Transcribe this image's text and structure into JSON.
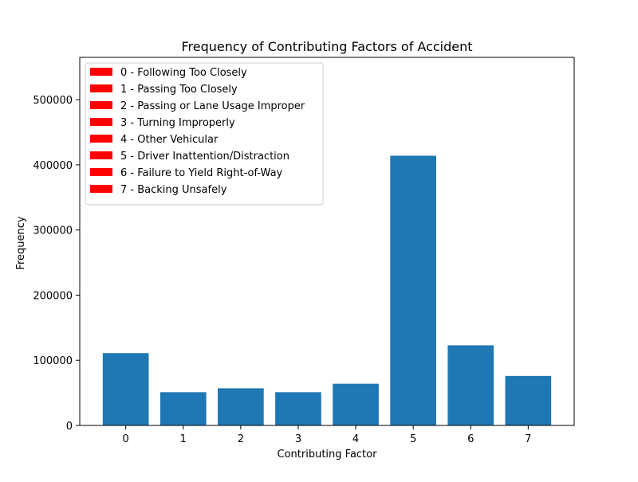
{
  "chart_data": {
    "type": "bar",
    "title": "Frequency of Contributing Factors of Accident",
    "xlabel": "Contributing Factor",
    "ylabel": "Frequency",
    "categories": [
      "0",
      "1",
      "2",
      "3",
      "4",
      "5",
      "6",
      "7"
    ],
    "values": [
      111000,
      51000,
      57000,
      51000,
      64000,
      414000,
      123000,
      76000
    ],
    "ylim": [
      0,
      565000
    ],
    "yticks": [
      0,
      100000,
      200000,
      300000,
      400000,
      500000
    ],
    "ytick_labels": [
      "0",
      "100000",
      "200000",
      "300000",
      "400000",
      "500000"
    ],
    "grid": false,
    "bar_color": "#1f77b4",
    "legend": {
      "placement": "top-left",
      "swatch_color": "#ff0000",
      "entries": [
        "0 - Following Too Closely",
        "1 - Passing Too Closely",
        "2 - Passing or Lane Usage Improper",
        "3 - Turning Improperly",
        "4 - Other Vehicular",
        "5 - Driver Inattention/Distraction",
        "6 - Failure to Yield Right-of-Way",
        "7 - Backing Unsafely"
      ]
    }
  }
}
